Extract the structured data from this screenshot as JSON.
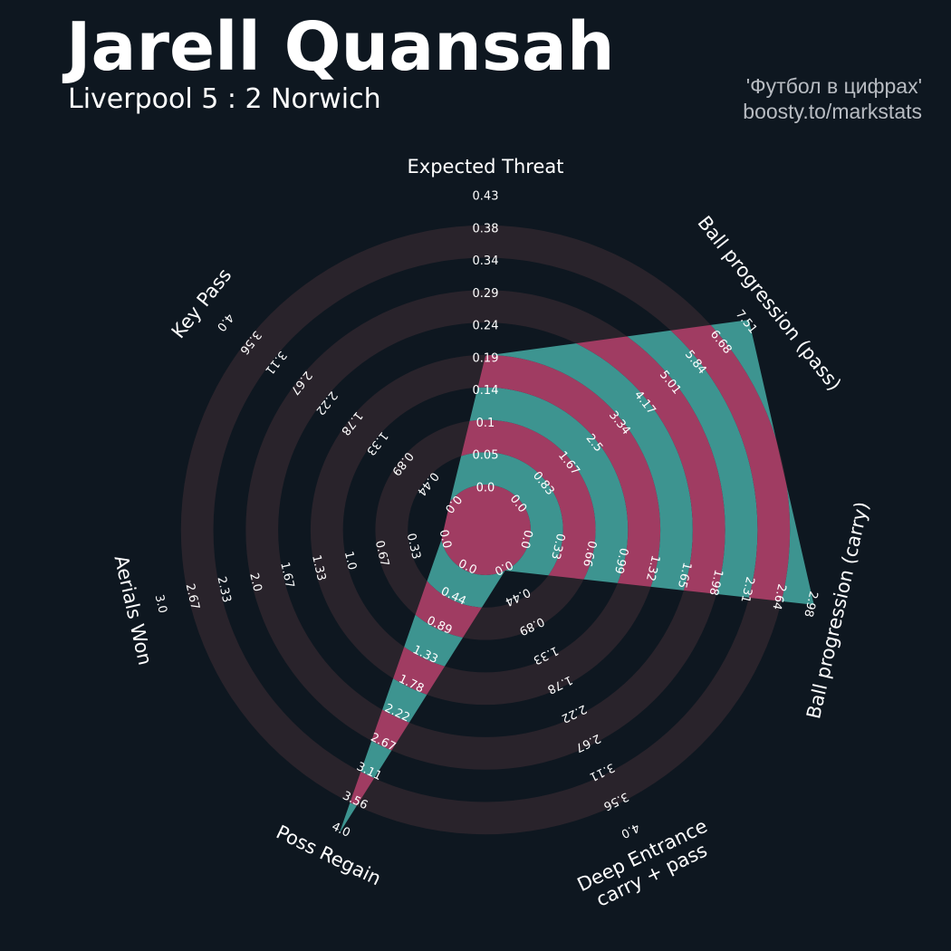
{
  "header": {
    "title": "Jarell Quansah",
    "subtitle": "Liverpool 5 : 2 Norwich",
    "credit_line1": "'Футбол в цифрах'",
    "credit_line2": "boosty.to/markstats"
  },
  "colors": {
    "background": "#0e1720",
    "ring_band": "#29232b",
    "fill_a": "#3d9490",
    "fill_b": "#a03c62",
    "text": "#ffffff",
    "credit_text": "#b8bcc2"
  },
  "chart_data": {
    "type": "radar",
    "grid": true,
    "params": [
      {
        "label": [
          "Expected Threat"
        ],
        "value": 0.19,
        "range": [
          0.0,
          0.43
        ],
        "ticks": [
          "0.0",
          "0.05",
          "0.1",
          "0.14",
          "0.19",
          "0.24",
          "0.29",
          "0.34",
          "0.38",
          "0.43"
        ]
      },
      {
        "label": [
          "Ball progression (pass)"
        ],
        "value": 7.51,
        "range": [
          0.0,
          7.51
        ],
        "ticks": [
          "0.0",
          "0.83",
          "1.67",
          "2.5",
          "3.34",
          "4.17",
          "5.01",
          "5.84",
          "6.68",
          "7.51"
        ]
      },
      {
        "label": [
          "Ball progression (carry)"
        ],
        "value": 2.98,
        "range": [
          0.0,
          2.98
        ],
        "ticks": [
          "0.0",
          "0.33",
          "0.66",
          "0.99",
          "1.32",
          "1.65",
          "1.98",
          "2.31",
          "2.64",
          "2.98"
        ]
      },
      {
        "label": [
          "Deep Entrance",
          "carry + pass"
        ],
        "value": 0.0,
        "range": [
          0.0,
          4.0
        ],
        "ticks": [
          "0.0",
          "0.44",
          "0.89",
          "1.33",
          "1.78",
          "2.22",
          "2.67",
          "3.11",
          "3.56",
          "4.0"
        ]
      },
      {
        "label": [
          "Poss Regain"
        ],
        "value": 4.0,
        "range": [
          0.0,
          4.0
        ],
        "ticks": [
          "0.0",
          "0.44",
          "0.89",
          "1.33",
          "1.78",
          "2.22",
          "2.67",
          "3.11",
          "3.56",
          "4.0"
        ]
      },
      {
        "label": [
          "Aerials Won"
        ],
        "value": 0.0,
        "range": [
          0.0,
          3.0
        ],
        "ticks": [
          "0.0",
          "0.33",
          "0.67",
          "1.0",
          "1.33",
          "1.67",
          "2.0",
          "2.33",
          "2.67",
          "3.0"
        ]
      },
      {
        "label": [
          "Key Pass"
        ],
        "value": 0.0,
        "range": [
          0.0,
          4.0
        ],
        "ticks": [
          "0.0",
          "0.44",
          "0.89",
          "1.33",
          "1.78",
          "2.22",
          "2.67",
          "3.11",
          "3.56",
          "4.0"
        ]
      }
    ]
  }
}
